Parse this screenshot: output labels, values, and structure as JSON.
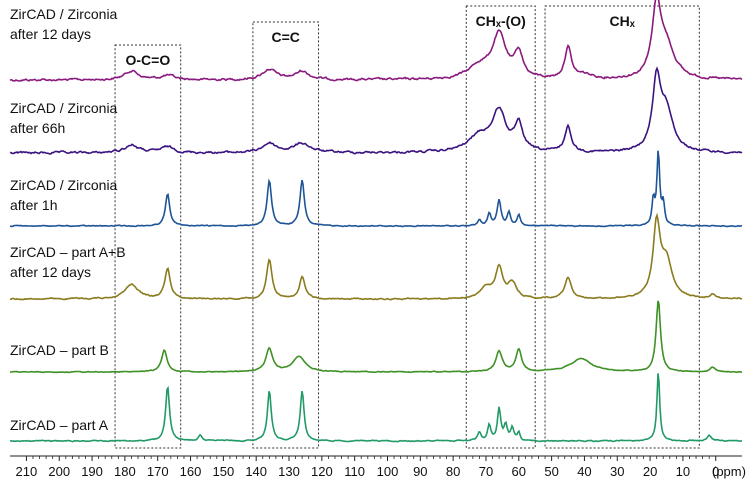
{
  "chart_data": {
    "type": "line",
    "x_unit": "(ppm)",
    "xlim": [
      215,
      -8
    ],
    "x_reversed": true,
    "x_ticks": [
      210,
      200,
      190,
      180,
      170,
      160,
      150,
      140,
      130,
      120,
      110,
      100,
      90,
      80,
      70,
      60,
      50,
      40,
      30,
      20,
      10,
      0
    ],
    "grid": false,
    "regions": [
      {
        "label": "O-C=O",
        "x_from": 183,
        "x_to": 163
      },
      {
        "label": "C=C",
        "x_from": 141,
        "x_to": 121
      },
      {
        "label": "CHₓ-(O)",
        "x_from": 76,
        "x_to": 55
      },
      {
        "label": "CHₓ",
        "x_from": 52,
        "x_to": 5
      }
    ],
    "series": [
      {
        "name": "ZirCAD / Zirconia after 12 days",
        "label_lines": [
          "ZirCAD / Zirconia",
          "after 12 days"
        ],
        "color": "#8b1a7f",
        "noise": 1.6,
        "peaks": [
          [
            178,
            0.13,
            2.5
          ],
          [
            167,
            0.06,
            2.5
          ],
          [
            136,
            0.15,
            2.5
          ],
          [
            126,
            0.12,
            2.5
          ],
          [
            72,
            0.18,
            4
          ],
          [
            66,
            0.62,
            2.5
          ],
          [
            60,
            0.35,
            1.5
          ],
          [
            45,
            0.45,
            1.2
          ],
          [
            40,
            0.06,
            3
          ],
          [
            18,
            1.0,
            1.6
          ],
          [
            15,
            0.45,
            3
          ]
        ]
      },
      {
        "name": "ZirCAD / Zirconia after 66h",
        "label_lines": [
          "ZirCAD / Zirconia",
          "after 66h"
        ],
        "color": "#3b1380",
        "noise": 1.6,
        "peaks": [
          [
            178,
            0.11,
            2.5
          ],
          [
            167,
            0.08,
            2.5
          ],
          [
            136,
            0.13,
            2.5
          ],
          [
            126,
            0.13,
            3
          ],
          [
            72,
            0.22,
            4
          ],
          [
            66,
            0.55,
            2.5
          ],
          [
            60,
            0.35,
            1.5
          ],
          [
            45,
            0.35,
            1.2
          ],
          [
            18,
            0.95,
            1.5
          ],
          [
            15,
            0.55,
            2.5
          ]
        ]
      },
      {
        "name": "ZirCAD / Zirconia after 1h",
        "label_lines": [
          "ZirCAD / Zirconia",
          "after 1h"
        ],
        "color": "#1f5596",
        "noise": 0.7,
        "peaks": [
          [
            167,
            0.44,
            0.8
          ],
          [
            136,
            0.62,
            0.8
          ],
          [
            126,
            0.62,
            0.8
          ],
          [
            72,
            0.08,
            0.6
          ],
          [
            69,
            0.16,
            0.6
          ],
          [
            66,
            0.35,
            0.7
          ],
          [
            63,
            0.18,
            0.6
          ],
          [
            60,
            0.15,
            0.6
          ],
          [
            19,
            0.35,
            0.5
          ],
          [
            17.5,
            1.0,
            0.5
          ],
          [
            16,
            0.3,
            0.5
          ]
        ]
      },
      {
        "name": "ZirCAD – part A+B after 12 days",
        "label_lines": [
          "ZirCAD – part A+B",
          "after 12 days"
        ],
        "color": "#8a7c1e",
        "noise": 1.0,
        "peaks": [
          [
            178,
            0.2,
            2.5
          ],
          [
            167,
            0.42,
            1.0
          ],
          [
            136,
            0.55,
            1.0
          ],
          [
            126,
            0.3,
            1.0
          ],
          [
            70,
            0.15,
            2
          ],
          [
            66,
            0.42,
            1.3
          ],
          [
            62,
            0.22,
            1.5
          ],
          [
            45,
            0.3,
            1.2
          ],
          [
            18,
            1.0,
            1.3
          ],
          [
            15,
            0.5,
            2
          ],
          [
            1,
            0.06,
            1
          ]
        ]
      },
      {
        "name": "ZirCAD – part B",
        "label_lines": [
          "ZirCAD – part B"
        ],
        "color": "#3f9126",
        "noise": 0.6,
        "peaks": [
          [
            168,
            0.3,
            1.0
          ],
          [
            136,
            0.32,
            1.2
          ],
          [
            127,
            0.22,
            2.2
          ],
          [
            66,
            0.28,
            1.2
          ],
          [
            60,
            0.3,
            1.0
          ],
          [
            41,
            0.18,
            4
          ],
          [
            17.5,
            1.0,
            0.8
          ],
          [
            1,
            0.06,
            1
          ]
        ]
      },
      {
        "name": "ZirCAD – part A",
        "label_lines": [
          "ZirCAD – part A"
        ],
        "color": "#229a68",
        "noise": 0.8,
        "peaks": [
          [
            167,
            0.78,
            0.7
          ],
          [
            157,
            0.08,
            0.7
          ],
          [
            136,
            0.72,
            0.7
          ],
          [
            126,
            0.72,
            0.7
          ],
          [
            72,
            0.12,
            0.6
          ],
          [
            69,
            0.22,
            0.6
          ],
          [
            66,
            0.45,
            0.6
          ],
          [
            64,
            0.22,
            0.6
          ],
          [
            62,
            0.18,
            0.6
          ],
          [
            60,
            0.12,
            0.5
          ],
          [
            17.5,
            1.0,
            0.5
          ],
          [
            2,
            0.08,
            0.8
          ]
        ]
      }
    ]
  }
}
